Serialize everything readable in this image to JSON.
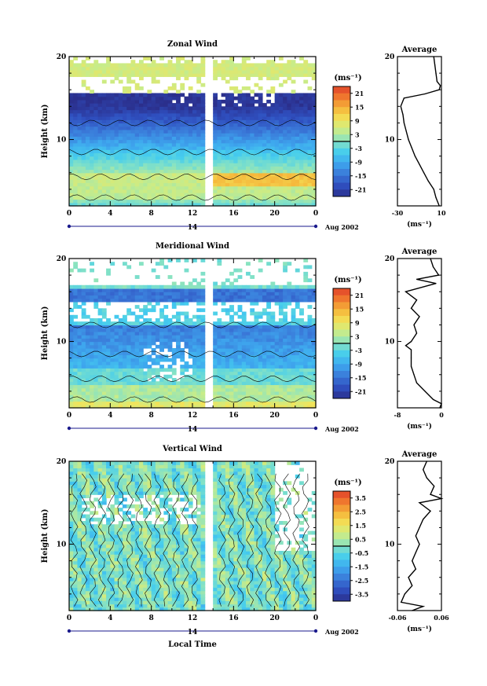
{
  "colors": {
    "colorbar_stops": [
      "#2b2f8c",
      "#2f4fbf",
      "#3a78d8",
      "#3ea6ee",
      "#45cdee",
      "#86e2c4",
      "#c7ec8a",
      "#f2e45a",
      "#f6b63a",
      "#f07a2e",
      "#e0402a"
    ],
    "gap": "#ffffff",
    "contour": "#000000"
  },
  "shared": {
    "x_tick_labels": [
      "0",
      "4",
      "8",
      "12",
      "16",
      "20",
      "0"
    ],
    "date_day": "14",
    "date_month_year": "Aug 2002",
    "xlabel": "Local Time",
    "ylabel": "Height (km)",
    "y_tick_labels": [
      "20",
      "10"
    ],
    "units": "(ms⁻¹)",
    "average_title": "Average"
  },
  "chart_data": [
    {
      "type": "heatmap",
      "title": "Zonal Wind",
      "xlim": [
        0,
        24
      ],
      "ylim": [
        2,
        20
      ],
      "colorbar_ticks": [
        "21",
        "15",
        "9",
        "3",
        "-3",
        "-9",
        "-15",
        "-21"
      ],
      "colorbar_range": [
        -24,
        24
      ],
      "gap_hours": [
        13.3,
        13.9
      ],
      "profile_description": "mean zonal wind vs height",
      "average": {
        "type": "line",
        "xlim": [
          -30,
          10
        ],
        "x_tick_labels": [
          "-30",
          "10"
        ],
        "height_km": [
          2,
          3,
          4,
          5,
          6,
          7,
          8,
          9,
          10,
          11,
          12,
          13,
          14,
          15,
          15.5,
          16,
          16.5,
          17,
          18,
          19,
          20
        ],
        "values": [
          8,
          5,
          3,
          -2,
          -6,
          -10,
          -14,
          -17,
          -20,
          -22,
          -24,
          -25,
          -27,
          -24,
          -5,
          8,
          9,
          6,
          5,
          4,
          3
        ]
      }
    },
    {
      "type": "heatmap",
      "title": "Meridional Wind",
      "xlim": [
        0,
        24
      ],
      "ylim": [
        2,
        20
      ],
      "colorbar_ticks": [
        "21",
        "15",
        "9",
        "3",
        "-3",
        "-9",
        "-15",
        "-21"
      ],
      "colorbar_range": [
        -24,
        24
      ],
      "gap_hours": [
        13.3,
        13.9
      ],
      "average": {
        "type": "line",
        "xlim": [
          -8,
          0
        ],
        "x_tick_labels": [
          "-8",
          "0"
        ],
        "height_km": [
          2,
          2.5,
          3,
          4,
          5,
          6,
          7,
          8,
          9,
          9.5,
          10,
          11,
          12,
          13,
          14,
          15,
          16,
          17,
          17.5,
          18,
          19,
          20
        ],
        "values": [
          -0.3,
          0,
          -1.5,
          -3,
          -4.5,
          -5,
          -5.5,
          -5.5,
          -5.5,
          -6.5,
          -5.5,
          -4.5,
          -5,
          -4,
          -5.5,
          -4.5,
          -6.5,
          -1,
          -4.5,
          -0.5,
          -1.5,
          -2
        ]
      }
    },
    {
      "type": "heatmap",
      "title": "Vertical Wind",
      "xlim": [
        0,
        24
      ],
      "ylim": [
        2,
        20
      ],
      "colorbar_ticks": [
        "3.5",
        "2.5",
        "1.5",
        "0.5",
        "-0.5",
        "-1.5",
        "-2.5",
        "-3.5"
      ],
      "colorbar_range": [
        -4,
        4
      ],
      "gap_hours": [
        13.3,
        13.9
      ],
      "average": {
        "type": "line",
        "xlim": [
          -0.06,
          0.06
        ],
        "x_tick_labels": [
          "-0.06",
          "0.06"
        ],
        "height_km": [
          2,
          2.5,
          3,
          4,
          5,
          6,
          7,
          8,
          9,
          10,
          11,
          12,
          13,
          14,
          15,
          15.5,
          16,
          17,
          18,
          19,
          20
        ],
        "values": [
          -0.02,
          0.01,
          -0.05,
          -0.04,
          -0.02,
          -0.03,
          -0.01,
          -0.02,
          -0.01,
          0.0,
          -0.01,
          0.0,
          0.01,
          0.03,
          0.0,
          0.06,
          0.03,
          0.04,
          0.02,
          0.01,
          0.02
        ]
      }
    }
  ]
}
